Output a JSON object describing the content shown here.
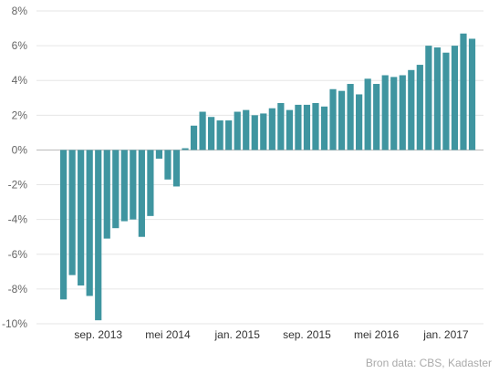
{
  "chart_data": {
    "type": "bar",
    "title": "",
    "xlabel": "",
    "ylabel": "",
    "ylim": [
      -10,
      8
    ],
    "y_ticks": [
      8,
      6,
      4,
      2,
      0,
      -2,
      -4,
      -6,
      -8,
      -10
    ],
    "y_tick_labels": [
      "8%",
      "6%",
      "4%",
      "2%",
      "0%",
      "-2%",
      "-4%",
      "-6%",
      "-8%",
      "-10%"
    ],
    "x_labels": [
      {
        "index": 4,
        "label": "sep. 2013"
      },
      {
        "index": 12,
        "label": "mei 2014"
      },
      {
        "index": 20,
        "label": "jan. 2015"
      },
      {
        "index": 28,
        "label": "sep. 2015"
      },
      {
        "index": 36,
        "label": "mei 2016"
      },
      {
        "index": 44,
        "label": "jan. 2017"
      }
    ],
    "grid": true,
    "bar_color": "#3f95a0",
    "values": [
      -8.6,
      -7.2,
      -7.8,
      -8.4,
      -9.8,
      -5.1,
      -4.5,
      -4.1,
      -4.0,
      -5.0,
      -3.8,
      -0.5,
      -1.7,
      -2.1,
      0.1,
      1.4,
      2.2,
      1.9,
      1.7,
      1.7,
      2.2,
      2.3,
      2.0,
      2.1,
      2.4,
      2.7,
      2.3,
      2.6,
      2.6,
      2.7,
      2.5,
      3.5,
      3.4,
      3.8,
      3.2,
      4.1,
      3.8,
      4.3,
      4.2,
      4.3,
      4.6,
      4.9,
      6.0,
      5.9,
      5.6,
      6.0,
      6.7,
      6.4
    ]
  },
  "source_text": "Bron data: CBS, Kadaster"
}
